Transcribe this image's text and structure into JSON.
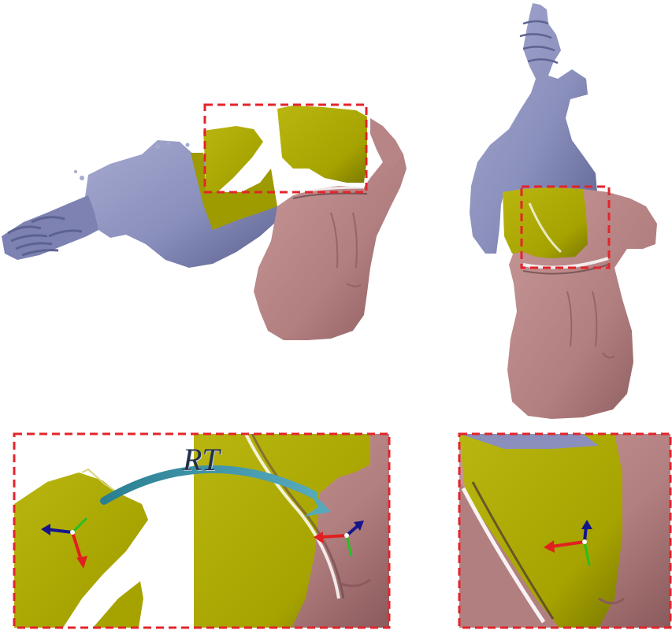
{
  "annotation": {
    "transform_label": "RT"
  },
  "colors": {
    "scan_blue": "#8a8fbc",
    "scan_blue_dark": "#5d6390",
    "torso_pink": "#b27f80",
    "torso_pink_dark": "#8a5a5c",
    "olive_patch": "#a6a300",
    "olive_dark": "#6f6d00",
    "highlight_box": "#e3242b",
    "arrow_teal": "#3a8fa3",
    "axis_x": "#e02020",
    "axis_y": "#25c025",
    "axis_z": "#15168c"
  }
}
